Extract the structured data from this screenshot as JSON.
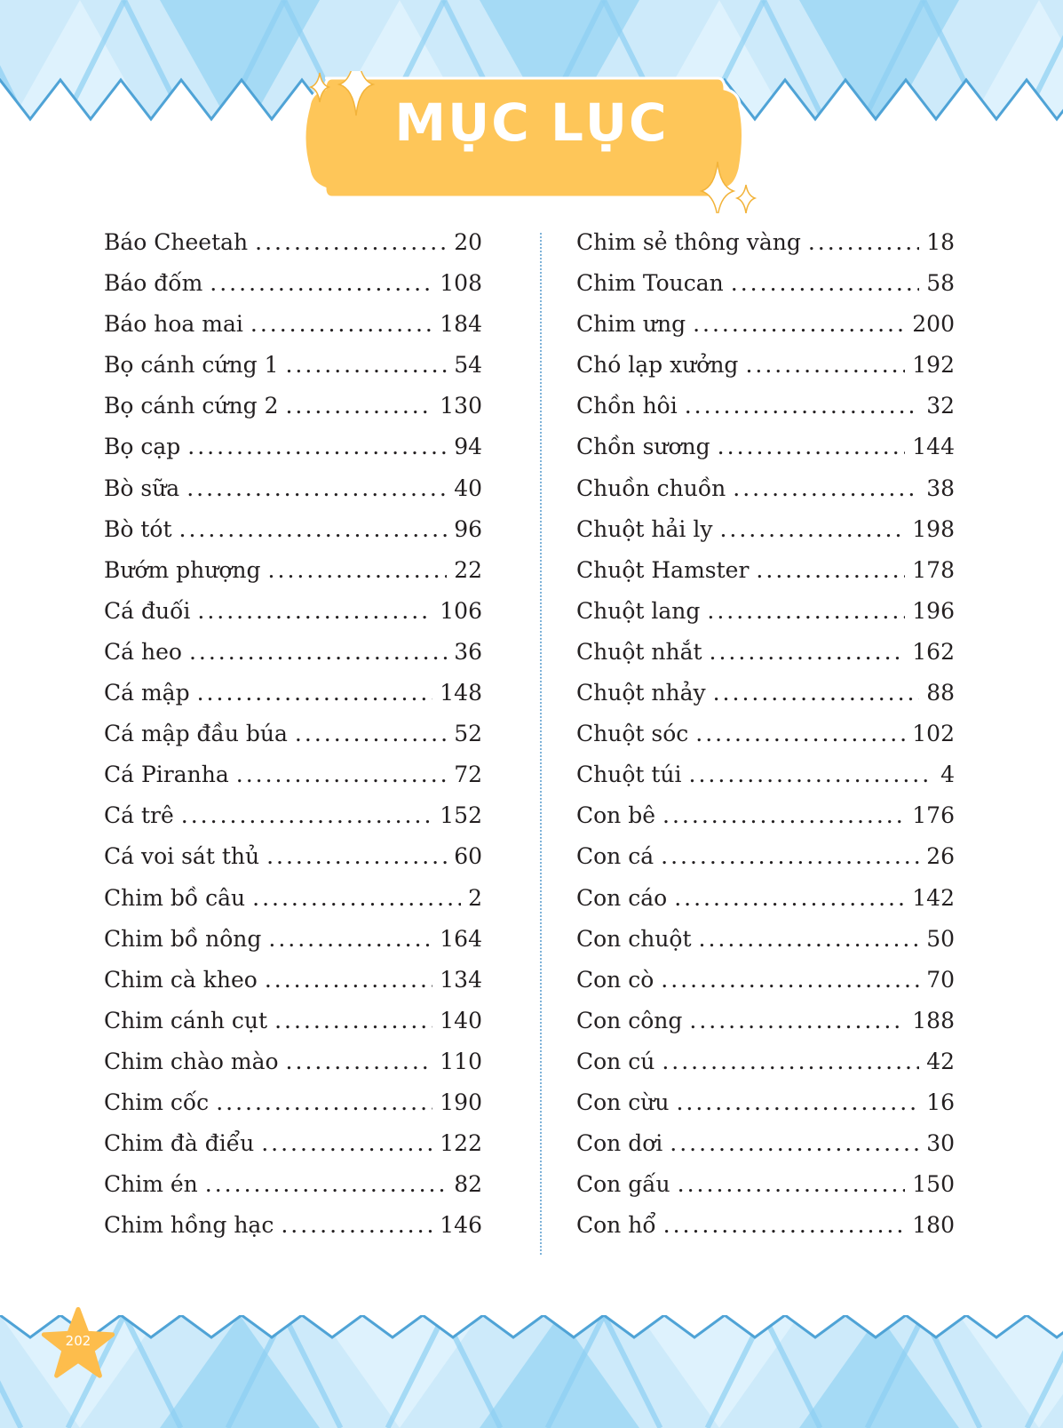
{
  "title": "MỤC LỤC",
  "page_number": "202",
  "colors": {
    "accent": "#fec659",
    "band_light": "#cdeafa",
    "band_mid": "#9bd6f4",
    "band_dark": "#4fa3d6",
    "text": "#231f20"
  },
  "left_column": [
    {
      "name": "Báo Cheetah",
      "page": "20"
    },
    {
      "name": "Báo đốm",
      "page": "108"
    },
    {
      "name": "Báo hoa mai",
      "page": "184"
    },
    {
      "name": "Bọ cánh cứng 1",
      "page": "54"
    },
    {
      "name": "Bọ cánh cứng 2",
      "page": "130"
    },
    {
      "name": "Bọ cạp",
      "page": "94"
    },
    {
      "name": "Bò sữa",
      "page": "40"
    },
    {
      "name": "Bò tót",
      "page": "96"
    },
    {
      "name": "Bướm phượng",
      "page": "22"
    },
    {
      "name": "Cá đuối",
      "page": "106"
    },
    {
      "name": "Cá heo",
      "page": "36"
    },
    {
      "name": "Cá mập",
      "page": "148"
    },
    {
      "name": "Cá mập đầu búa",
      "page": "52"
    },
    {
      "name": "Cá Piranha",
      "page": "72"
    },
    {
      "name": "Cá trê",
      "page": "152"
    },
    {
      "name": "Cá voi sát thủ",
      "page": "60"
    },
    {
      "name": "Chim bồ câu",
      "page": "2"
    },
    {
      "name": "Chim bồ nông",
      "page": "164"
    },
    {
      "name": "Chim cà kheo",
      "page": "134"
    },
    {
      "name": "Chim cánh cụt",
      "page": "140"
    },
    {
      "name": "Chim chào mào",
      "page": "110"
    },
    {
      "name": "Chim cốc",
      "page": "190"
    },
    {
      "name": "Chim đà điểu",
      "page": "122"
    },
    {
      "name": "Chim én",
      "page": "82"
    },
    {
      "name": "Chim hồng hạc",
      "page": "146"
    }
  ],
  "right_column": [
    {
      "name": "Chim sẻ thông vàng",
      "page": "18"
    },
    {
      "name": "Chim Toucan",
      "page": "58"
    },
    {
      "name": "Chim ưng",
      "page": "200"
    },
    {
      "name": "Chó lạp xưởng",
      "page": "192"
    },
    {
      "name": "Chồn hôi",
      "page": "32"
    },
    {
      "name": "Chồn sương",
      "page": "144"
    },
    {
      "name": "Chuồn chuồn",
      "page": "38"
    },
    {
      "name": "Chuột hải ly",
      "page": "198"
    },
    {
      "name": "Chuột Hamster",
      "page": "178"
    },
    {
      "name": "Chuột lang",
      "page": "196"
    },
    {
      "name": "Chuột nhắt",
      "page": "162"
    },
    {
      "name": "Chuột nhảy",
      "page": "88"
    },
    {
      "name": "Chuột sóc",
      "page": "102"
    },
    {
      "name": "Chuột túi",
      "page": "4"
    },
    {
      "name": "Con bê",
      "page": "176"
    },
    {
      "name": "Con cá",
      "page": "26"
    },
    {
      "name": "Con cáo",
      "page": "142"
    },
    {
      "name": "Con chuột",
      "page": "50"
    },
    {
      "name": "Con cò",
      "page": "70"
    },
    {
      "name": "Con công",
      "page": "188"
    },
    {
      "name": "Con cú",
      "page": "42"
    },
    {
      "name": "Con cừu",
      "page": "16"
    },
    {
      "name": "Con dơi",
      "page": "30"
    },
    {
      "name": "Con gấu",
      "page": "150"
    },
    {
      "name": "Con hổ",
      "page": "180"
    }
  ]
}
